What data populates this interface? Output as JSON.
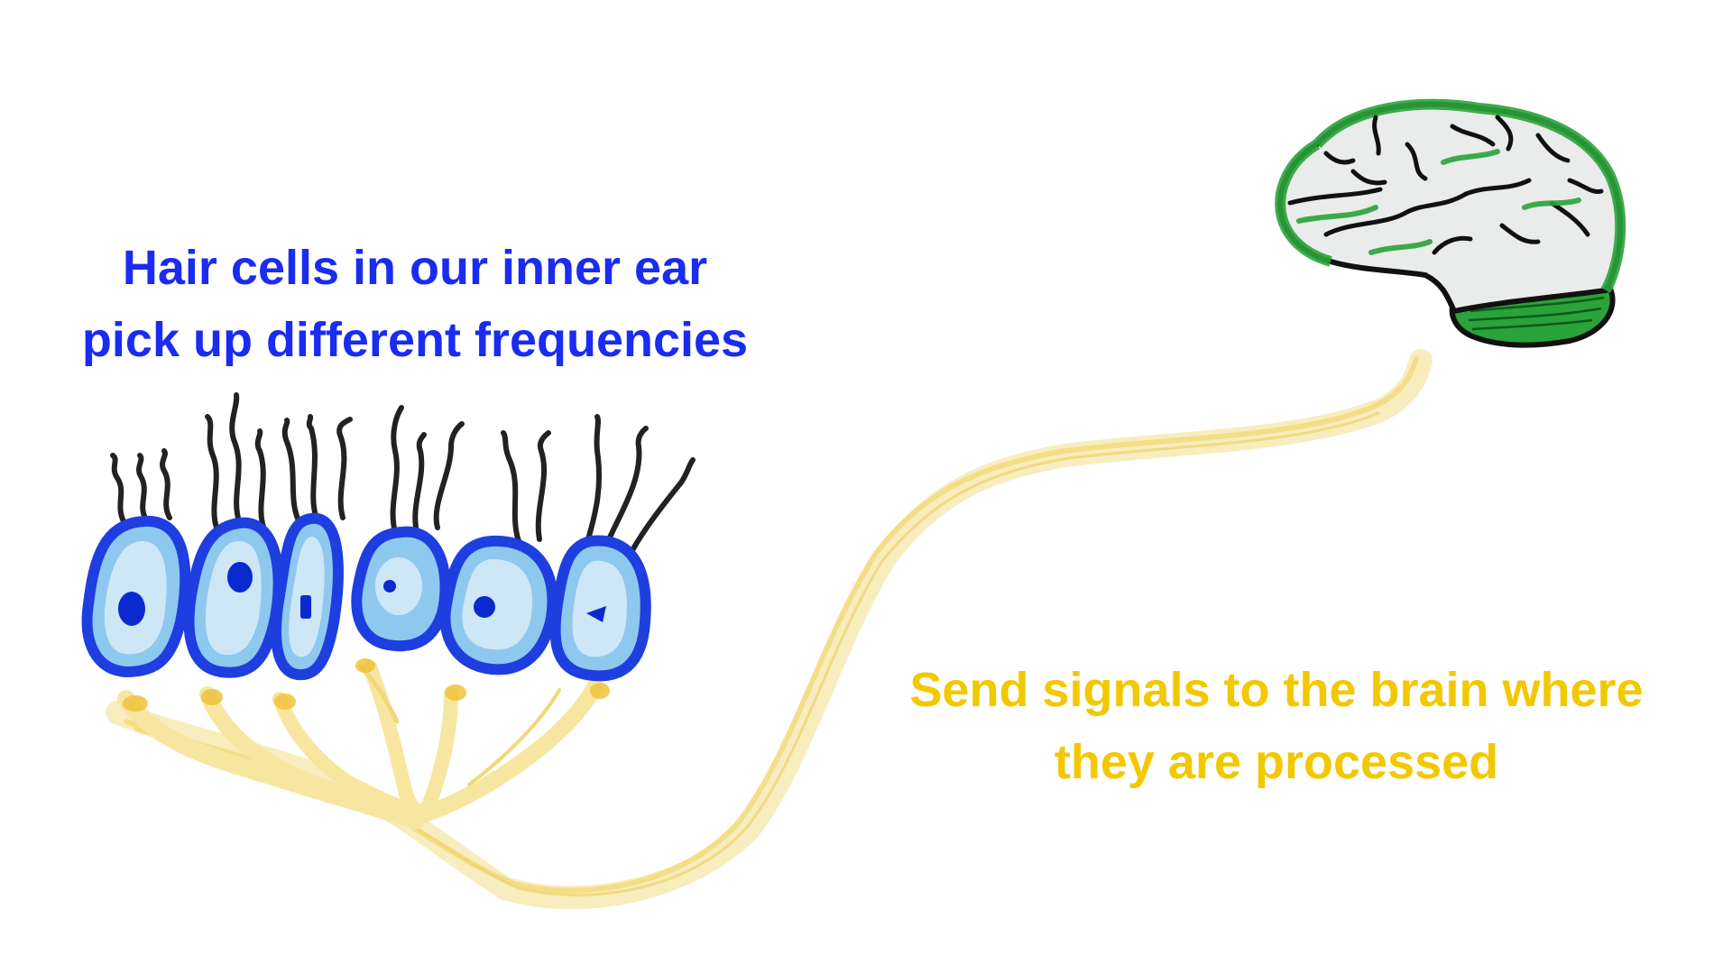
{
  "captions": {
    "hair_cells": {
      "line1": "Hair cells in our inner ear",
      "line2": "pick up different frequencies",
      "color": "#1a2cf0"
    },
    "signals": {
      "line1": "Send signals to the brain where",
      "line2": "they are processed",
      "color": "#f2c800"
    }
  },
  "illustration": {
    "hair_cell_count": 6,
    "cell_outline_color": "#1e3ee0",
    "cell_fill_color": "#8fc8ef",
    "cell_nucleus_color": "#0a2ad0",
    "stereocilia_color": "#222222",
    "nerve_color": "#f6e6a0",
    "nerve_accent_color": "#f0c23c",
    "brain_outline_color": "#111111",
    "brain_fill_color": "#e9ecea",
    "brain_accent_color": "#2aa33a",
    "icons": [
      "hair-cell-icon",
      "nerve-fiber-icon",
      "brain-icon"
    ]
  }
}
